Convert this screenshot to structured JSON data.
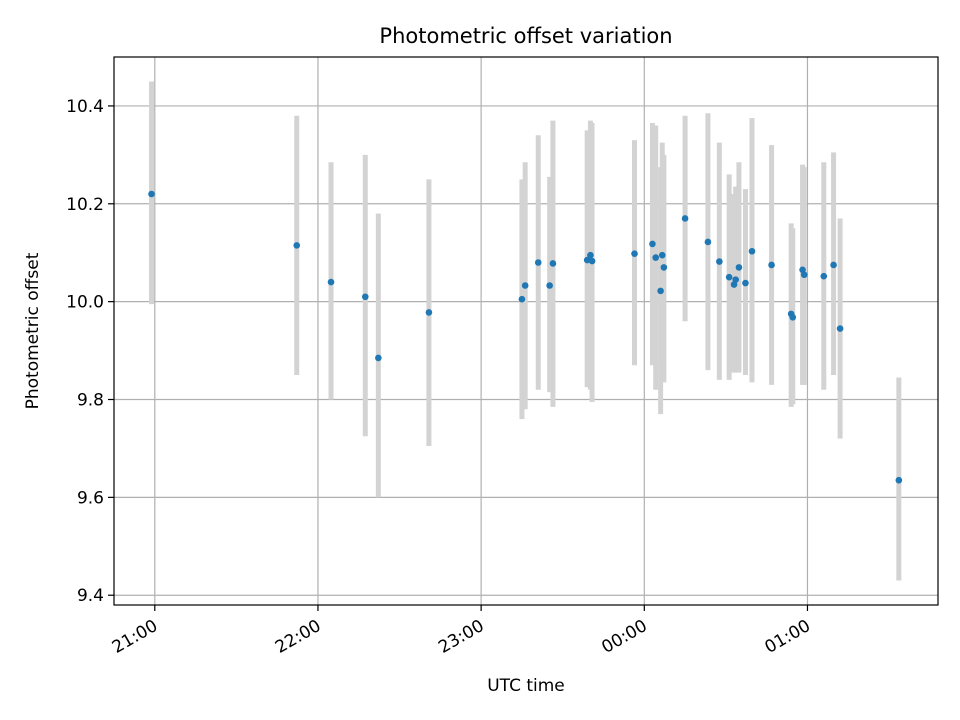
{
  "chart_data": {
    "type": "scatter",
    "title": "Photometric offset variation",
    "xlabel": "UTC time",
    "ylabel": "Photometric offset",
    "x_unit": "UTC time (hours, 21:00 = 21.0, past midnight > 24)",
    "xlim": [
      20.75,
      25.8
    ],
    "ylim": [
      9.38,
      10.5
    ],
    "x_ticks": [
      {
        "value": 21,
        "label": "21:00"
      },
      {
        "value": 22,
        "label": "22:00"
      },
      {
        "value": 23,
        "label": "23:00"
      },
      {
        "value": 24,
        "label": "00:00"
      },
      {
        "value": 25,
        "label": "01:00"
      }
    ],
    "y_ticks": [
      {
        "value": 9.4,
        "label": "9.4"
      },
      {
        "value": 9.6,
        "label": "9.6"
      },
      {
        "value": 9.8,
        "label": "9.8"
      },
      {
        "value": 10.0,
        "label": "10.0"
      },
      {
        "value": 10.2,
        "label": "10.2"
      },
      {
        "value": 10.4,
        "label": "10.4"
      }
    ],
    "grid": true,
    "colors": {
      "point": "#1f77b4",
      "errorbar": "#d3d3d3",
      "grid": "#b0b0b0"
    },
    "series": [
      {
        "points": [
          {
            "x": 20.98,
            "y": 10.22,
            "ylow": 9.995,
            "yhigh": 10.45
          },
          {
            "x": 21.87,
            "y": 10.115,
            "ylow": 9.85,
            "yhigh": 10.38
          },
          {
            "x": 22.08,
            "y": 10.04,
            "ylow": 9.8,
            "yhigh": 10.285
          },
          {
            "x": 22.29,
            "y": 10.01,
            "ylow": 9.725,
            "yhigh": 10.3
          },
          {
            "x": 22.37,
            "y": 9.885,
            "ylow": 9.6,
            "yhigh": 10.18
          },
          {
            "x": 22.68,
            "y": 9.978,
            "ylow": 9.705,
            "yhigh": 10.25
          },
          {
            "x": 23.25,
            "y": 10.005,
            "ylow": 9.76,
            "yhigh": 10.25
          },
          {
            "x": 23.27,
            "y": 10.033,
            "ylow": 9.78,
            "yhigh": 10.285
          },
          {
            "x": 23.35,
            "y": 10.08,
            "ylow": 9.82,
            "yhigh": 10.34
          },
          {
            "x": 23.42,
            "y": 10.033,
            "ylow": 9.815,
            "yhigh": 10.255
          },
          {
            "x": 23.44,
            "y": 10.078,
            "ylow": 9.785,
            "yhigh": 10.37
          },
          {
            "x": 23.65,
            "y": 10.085,
            "ylow": 9.825,
            "yhigh": 10.35
          },
          {
            "x": 23.67,
            "y": 10.095,
            "ylow": 9.82,
            "yhigh": 10.37
          },
          {
            "x": 23.68,
            "y": 10.083,
            "ylow": 9.795,
            "yhigh": 10.365
          },
          {
            "x": 23.94,
            "y": 10.098,
            "ylow": 9.87,
            "yhigh": 10.33
          },
          {
            "x": 24.05,
            "y": 10.118,
            "ylow": 9.87,
            "yhigh": 10.365
          },
          {
            "x": 24.07,
            "y": 10.09,
            "ylow": 9.82,
            "yhigh": 10.36
          },
          {
            "x": 24.1,
            "y": 10.022,
            "ylow": 9.77,
            "yhigh": 10.275
          },
          {
            "x": 24.11,
            "y": 10.095,
            "ylow": 9.865,
            "yhigh": 10.325
          },
          {
            "x": 24.12,
            "y": 10.07,
            "ylow": 9.835,
            "yhigh": 10.3
          },
          {
            "x": 24.25,
            "y": 10.17,
            "ylow": 9.96,
            "yhigh": 10.38
          },
          {
            "x": 24.39,
            "y": 10.122,
            "ylow": 9.86,
            "yhigh": 10.385
          },
          {
            "x": 24.46,
            "y": 10.082,
            "ylow": 9.84,
            "yhigh": 10.325
          },
          {
            "x": 24.52,
            "y": 10.05,
            "ylow": 9.84,
            "yhigh": 10.26
          },
          {
            "x": 24.55,
            "y": 10.035,
            "ylow": 9.855,
            "yhigh": 10.22
          },
          {
            "x": 24.56,
            "y": 10.045,
            "ylow": 9.86,
            "yhigh": 10.235
          },
          {
            "x": 24.58,
            "y": 10.07,
            "ylow": 9.855,
            "yhigh": 10.285
          },
          {
            "x": 24.62,
            "y": 10.038,
            "ylow": 9.85,
            "yhigh": 10.23
          },
          {
            "x": 24.66,
            "y": 10.103,
            "ylow": 9.835,
            "yhigh": 10.375
          },
          {
            "x": 24.78,
            "y": 10.075,
            "ylow": 9.83,
            "yhigh": 10.32
          },
          {
            "x": 24.9,
            "y": 9.975,
            "ylow": 9.785,
            "yhigh": 10.16
          },
          {
            "x": 24.91,
            "y": 9.968,
            "ylow": 9.79,
            "yhigh": 10.15
          },
          {
            "x": 24.97,
            "y": 10.065,
            "ylow": 9.83,
            "yhigh": 10.28
          },
          {
            "x": 24.98,
            "y": 10.055,
            "ylow": 9.83,
            "yhigh": 10.275
          },
          {
            "x": 25.1,
            "y": 10.052,
            "ylow": 9.82,
            "yhigh": 10.285
          },
          {
            "x": 25.16,
            "y": 10.075,
            "ylow": 9.85,
            "yhigh": 10.305
          },
          {
            "x": 25.2,
            "y": 9.945,
            "ylow": 9.72,
            "yhigh": 10.17
          },
          {
            "x": 25.56,
            "y": 9.635,
            "ylow": 9.43,
            "yhigh": 9.845
          }
        ]
      }
    ]
  }
}
